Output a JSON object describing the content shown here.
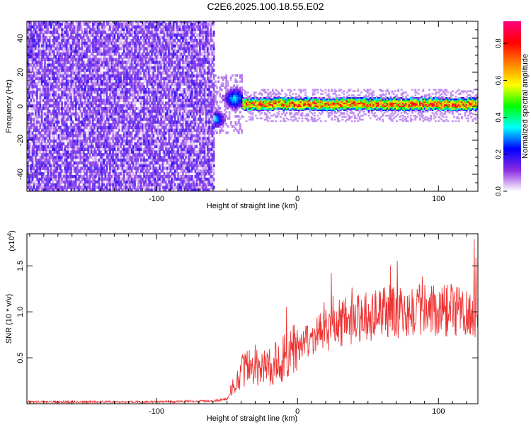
{
  "title": "C2E6.2025.100.18.55.E02",
  "chart_data": [
    {
      "type": "heatmap",
      "subtype": "spectrogram",
      "xlabel": "Height of straight line (km)",
      "ylabel": "Frequency (Hz)",
      "xlim": [
        -192,
        128
      ],
      "ylim": [
        -50,
        50
      ],
      "xticks": [
        -100,
        0,
        100
      ],
      "yticks": [
        -40,
        -20,
        0,
        20,
        40
      ],
      "colorbar": {
        "label": "Normalized spectral amplitude",
        "range": [
          0,
          0.92
        ],
        "ticks": [
          0.0,
          0.2,
          0.4,
          0.6,
          0.8
        ],
        "tick_labels": [
          "0.0",
          "0.2",
          "0.4",
          "0.6",
          "0.8"
        ],
        "colormap": [
          "#ffffff",
          "#8a2be2",
          "#0000ff",
          "#00ffff",
          "#00ff00",
          "#ffff00",
          "#ff8000",
          "#ff0000",
          "#ff0080"
        ]
      },
      "regions": [
        {
          "name": "noise",
          "x_range": [
            -192,
            -60
          ],
          "freq_range": [
            -50,
            50
          ],
          "amplitude": 0.12
        },
        {
          "name": "transition",
          "x_range": [
            -60,
            -40
          ],
          "freq_range": [
            -12,
            14
          ],
          "amplitude": 0.3
        },
        {
          "name": "signal",
          "x_range": [
            -40,
            128
          ],
          "center_freq": 1,
          "bandwidth": 8,
          "peak_amplitude": 0.9
        }
      ],
      "grid": false
    },
    {
      "type": "line",
      "xlabel": "Height of straight line (km)",
      "ylabel": "SNR (10 * v/v)",
      "y_multiplier": "(x10",
      "y_multiplier_exp": "4",
      "y_multiplier_close": ")",
      "xlim": [
        -192,
        128
      ],
      "ylim": [
        0,
        1.85
      ],
      "xticks": [
        -100,
        0,
        100
      ],
      "yticks": [
        0.5,
        1.0,
        1.5
      ],
      "ytick_labels": [
        "0.5",
        "1.0",
        "1.5"
      ],
      "color": "#ee3333",
      "series": [
        {
          "x": [
            -192,
            -150,
            -100,
            -60,
            -50,
            -45,
            -40,
            -35,
            -30,
            -25,
            -20,
            -15,
            -10,
            -5,
            0,
            10,
            20,
            30,
            40,
            50,
            60,
            70,
            80,
            90,
            100,
            110,
            120,
            128
          ],
          "y": [
            0.02,
            0.02,
            0.02,
            0.03,
            0.05,
            0.2,
            0.35,
            0.4,
            0.42,
            0.38,
            0.4,
            0.45,
            0.5,
            0.55,
            0.6,
            0.7,
            0.8,
            0.88,
            0.92,
            0.95,
            1.0,
            1.0,
            0.98,
            1.02,
            1.0,
            1.0,
            0.98,
            1.02
          ]
        }
      ],
      "grid": false
    }
  ]
}
